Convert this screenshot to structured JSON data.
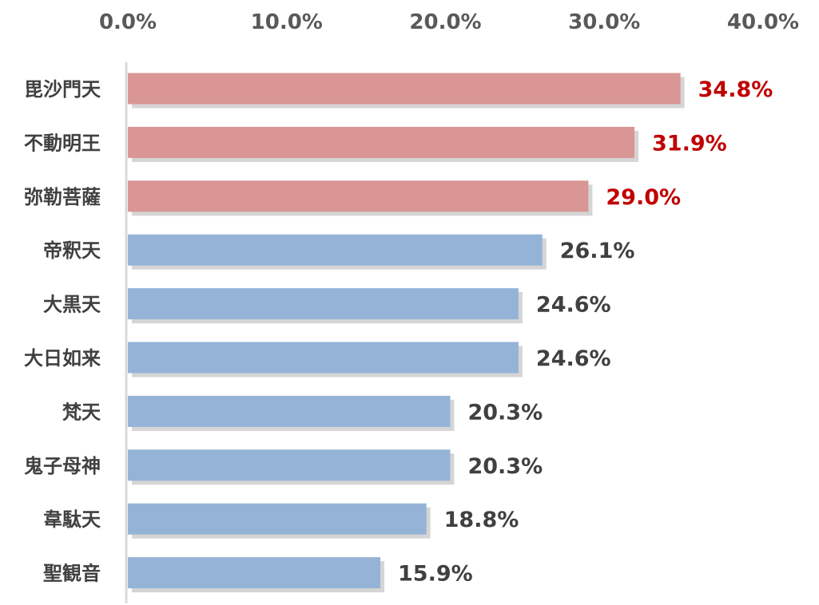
{
  "chart_data": {
    "type": "bar",
    "orientation": "horizontal",
    "categories": [
      "毘沙門天",
      "不動明王",
      "弥勒菩薩",
      "帝釈天",
      "大黒天",
      "大日如来",
      "梵天",
      "鬼子母神",
      "韋駄天",
      "聖観音"
    ],
    "values": [
      34.8,
      31.9,
      29.0,
      26.1,
      24.6,
      24.6,
      20.3,
      20.3,
      18.8,
      15.9
    ],
    "value_labels": [
      "34.8%",
      "31.9%",
      "29.0%",
      "26.1%",
      "24.6%",
      "24.6%",
      "20.3%",
      "20.3%",
      "18.8%",
      "15.9%"
    ],
    "highlighted": [
      true,
      true,
      true,
      false,
      false,
      false,
      false,
      false,
      false,
      false
    ],
    "xlim": [
      0,
      40
    ],
    "x_ticks": [
      0,
      10,
      20,
      30,
      40
    ],
    "x_tick_labels": [
      "0.0%",
      "10.0%",
      "20.0%",
      "30.0%",
      "40.0%"
    ],
    "x_axis_position": "top",
    "grid": false,
    "legend": "none",
    "colors": {
      "highlight_bar": "#d99694",
      "normal_bar": "#95b3d7",
      "highlight_label": "#c00000",
      "normal_label": "#404040",
      "axis_line": "#d9d9d9",
      "tick_text": "#595959",
      "category_text": "#404040",
      "shadow": "#b3b3b3"
    }
  }
}
